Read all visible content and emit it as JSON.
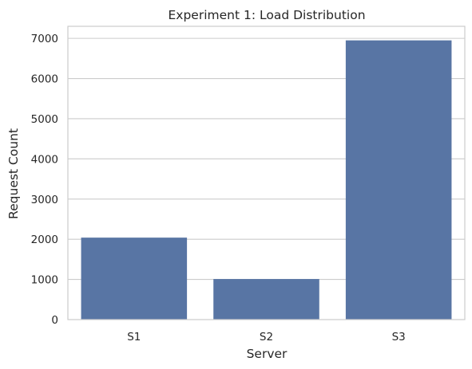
{
  "chart_data": {
    "type": "bar",
    "title": "Experiment 1: Load Distribution",
    "xlabel": "Server",
    "ylabel": "Request Count",
    "categories": [
      "S1",
      "S2",
      "S3"
    ],
    "values": [
      2040,
      1010,
      6950
    ],
    "ylim": [
      0,
      7300
    ],
    "yticks": [
      0,
      1000,
      2000,
      3000,
      4000,
      5000,
      6000,
      7000
    ],
    "grid": "horizontal",
    "bar_color": "#5875a4",
    "grid_color": "#cccccc",
    "spine_color": "#cccccc"
  }
}
